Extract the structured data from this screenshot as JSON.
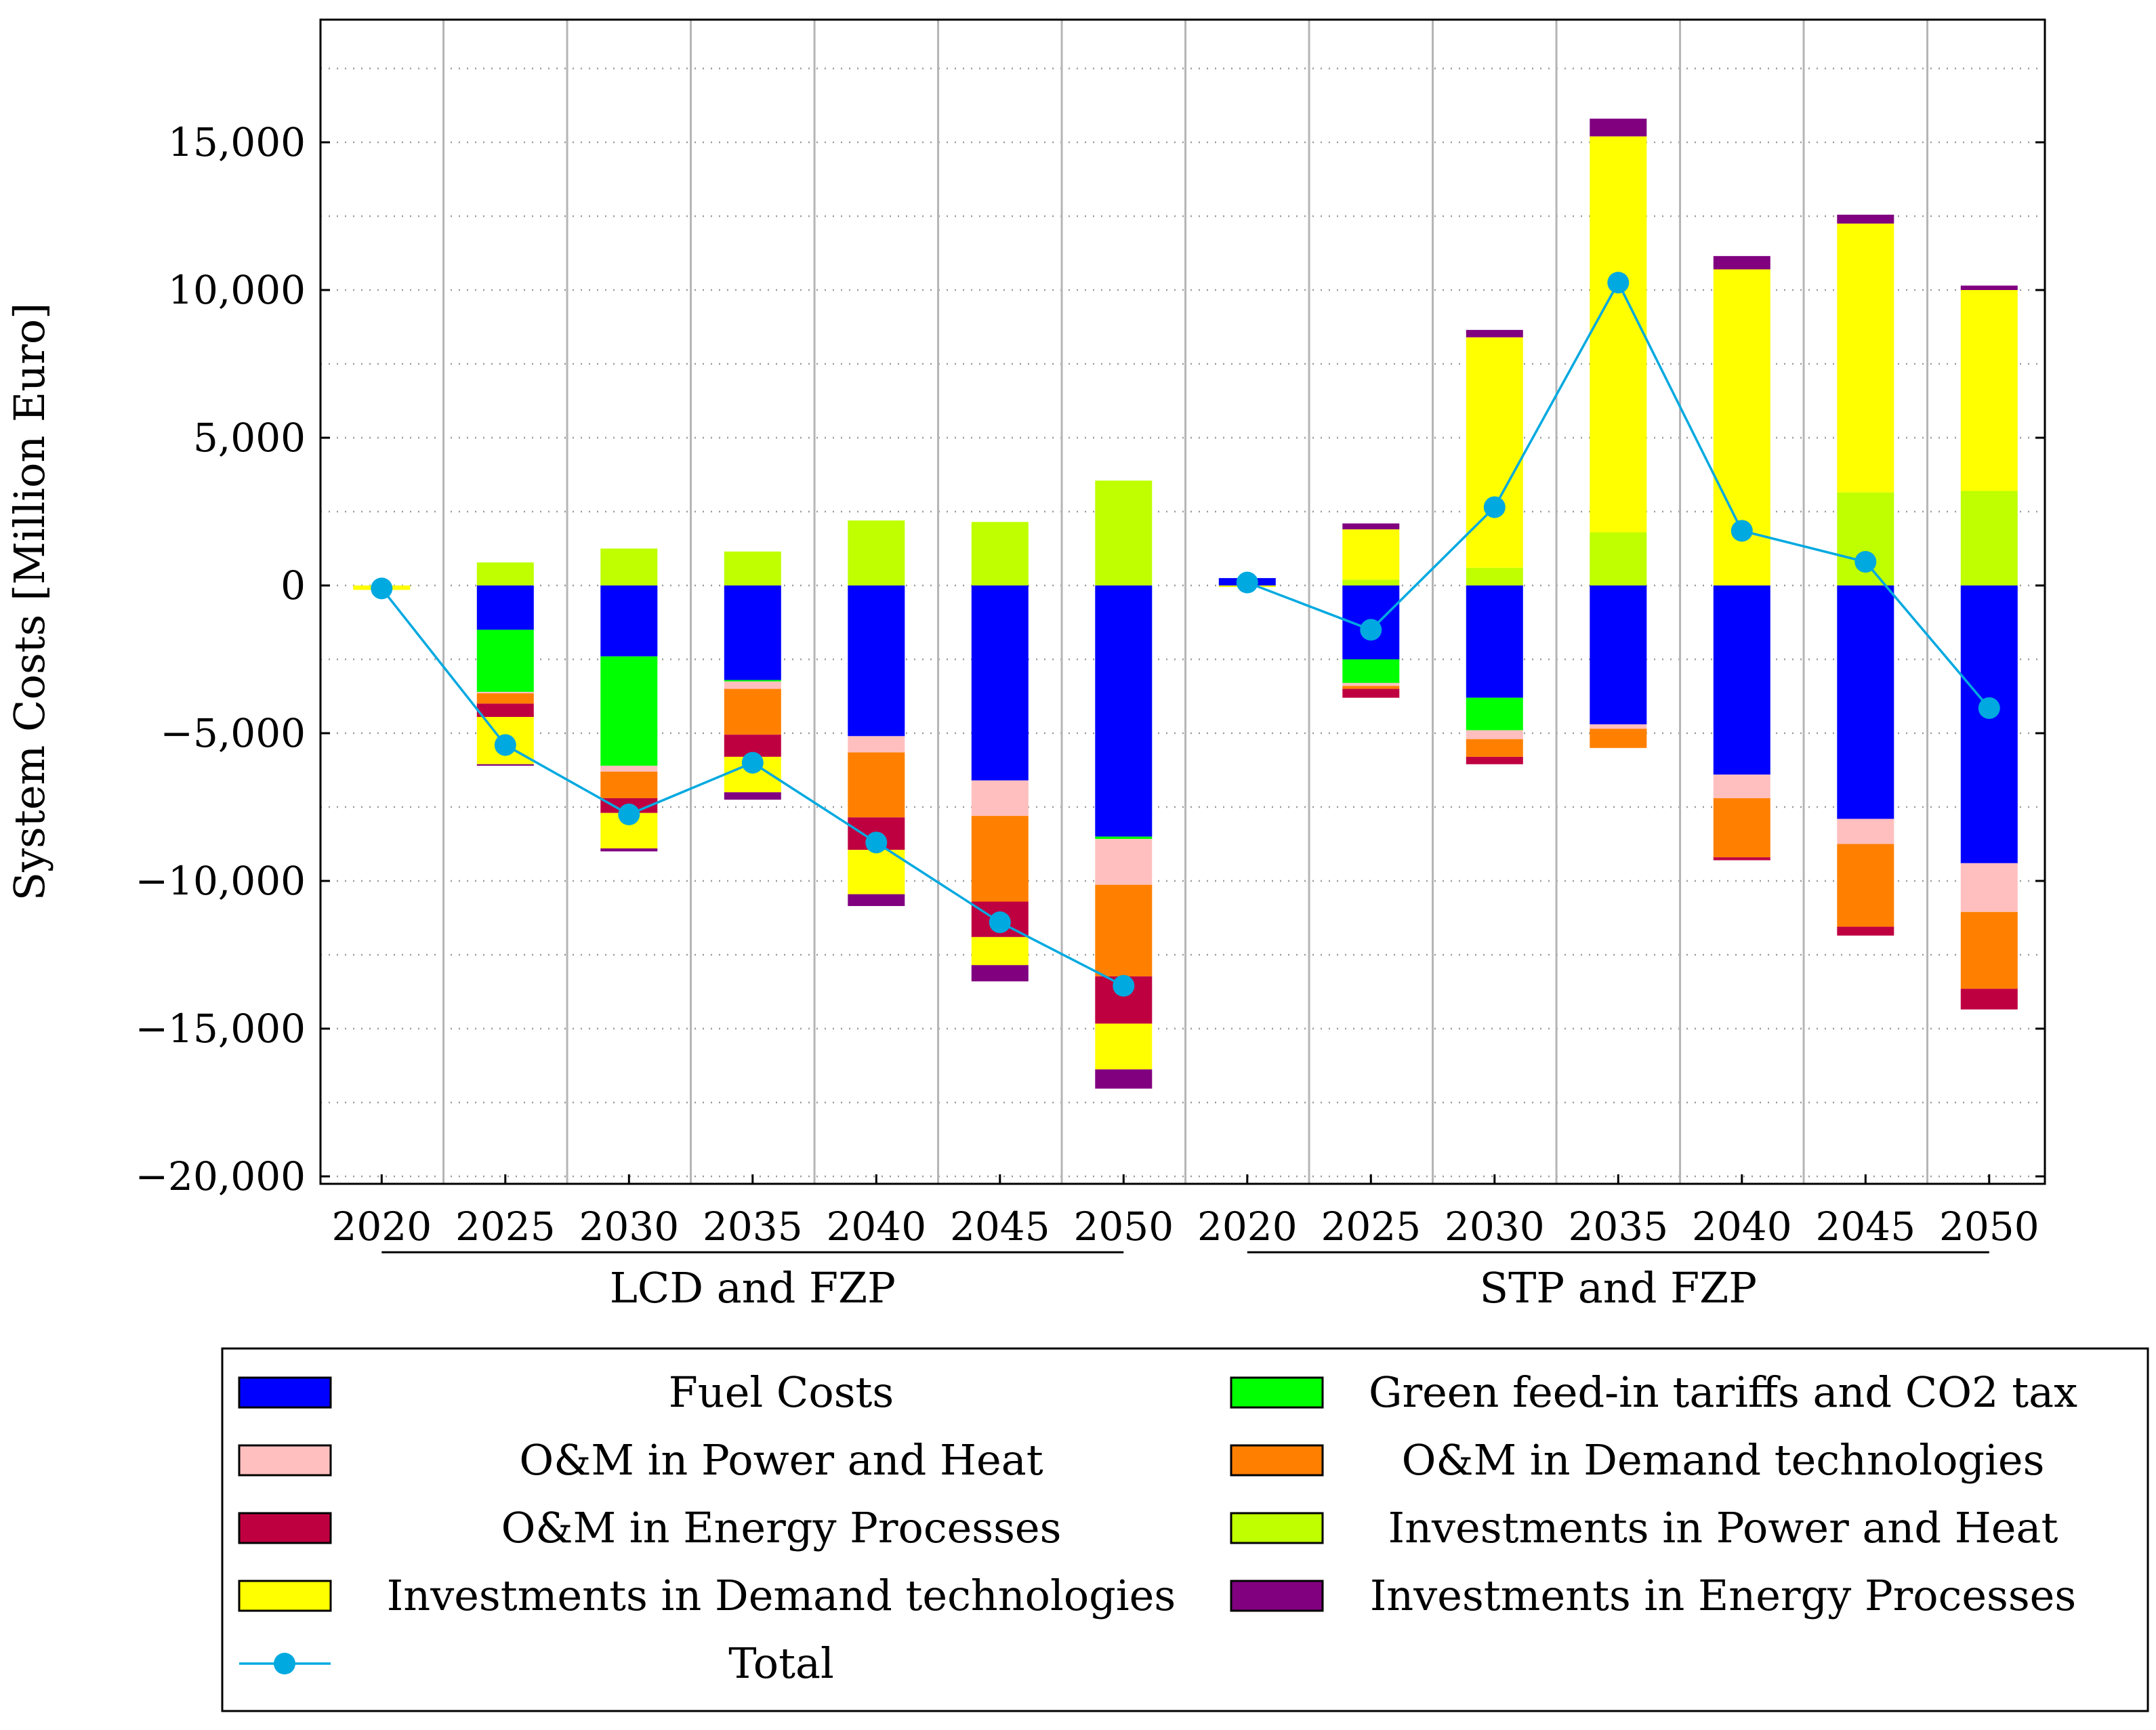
{
  "chart_data": {
    "type": "bar",
    "stacked": true,
    "ylabel": "System Costs [Million Euro]",
    "ylim": [
      -20000,
      19000
    ],
    "yticks": [
      -20000,
      -15000,
      -10000,
      -5000,
      0,
      5000,
      10000,
      15000
    ],
    "ytick_labels": [
      "−20,000",
      "−15,000",
      "−10,000",
      "−5,000",
      "0",
      "5,000",
      "10,000",
      "15,000"
    ],
    "grid": true,
    "legend_position": "bottom",
    "groups": [
      {
        "label": "LCD and FZP",
        "categories": [
          "2020",
          "2025",
          "2030",
          "2035",
          "2040",
          "2045",
          "2050"
        ]
      },
      {
        "label": "STP and FZP",
        "categories": [
          "2020",
          "2025",
          "2030",
          "2035",
          "2040",
          "2045",
          "2050"
        ]
      }
    ],
    "series": [
      {
        "name": "Fuel Costs",
        "color": "#0000ff",
        "values": [
          0,
          -1500,
          -2400,
          -3200,
          -5100,
          -6600,
          -8500,
          250,
          -2500,
          -3800,
          -4700,
          -6400,
          -7900,
          -9400
        ]
      },
      {
        "name": "Green feed-in tariffs and CO2 tax",
        "color": "#00ff00",
        "values": [
          0,
          -2100,
          -3700,
          -50,
          0,
          0,
          -80,
          0,
          -800,
          -1100,
          0,
          0,
          0,
          0
        ]
      },
      {
        "name": "O&M in Power and Heat",
        "color": "#ffbfbf",
        "values": [
          0,
          -50,
          -200,
          -250,
          -550,
          -1200,
          -1550,
          0,
          -100,
          -300,
          -150,
          -800,
          -850,
          -1650
        ]
      },
      {
        "name": "O&M in Demand technologies",
        "color": "#ff8000",
        "values": [
          0,
          -350,
          -900,
          -1550,
          -2200,
          -2900,
          -3100,
          0,
          -100,
          -600,
          -650,
          -2000,
          -2800,
          -2600
        ]
      },
      {
        "name": "O&M in Energy Processes",
        "color": "#bf0040",
        "values": [
          0,
          -450,
          -500,
          -750,
          -1100,
          -1200,
          -1600,
          0,
          -300,
          -250,
          0,
          -100,
          -300,
          -700
        ]
      },
      {
        "name": "Investments in Power and Heat",
        "color": "#bfff00",
        "values": [
          0,
          780,
          1250,
          1150,
          2200,
          2150,
          3550,
          0,
          200,
          600,
          1800,
          0,
          3150,
          3200
        ]
      },
      {
        "name": "Investments in Demand technologies",
        "color": "#ffff00",
        "values": [
          -150,
          -1600,
          -1200,
          -1200,
          -1500,
          -950,
          -1550,
          -50,
          1700,
          7800,
          13400,
          10700,
          9100,
          6800
        ]
      },
      {
        "name": "Investments in Energy Processes",
        "color": "#800080",
        "values": [
          0,
          -50,
          -100,
          -250,
          -400,
          -550,
          -650,
          0,
          200,
          250,
          600,
          450,
          300,
          150
        ]
      }
    ],
    "total": {
      "name": "Total",
      "color": "#00a9e0",
      "values": [
        -100,
        -5400,
        -7750,
        -6000,
        -8700,
        -11400,
        -13550,
        100,
        -1500,
        2650,
        10250,
        1850,
        800,
        -4150
      ]
    }
  }
}
